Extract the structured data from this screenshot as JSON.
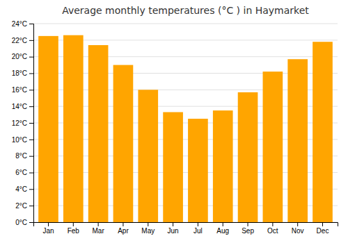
{
  "chart_data": {
    "type": "bar",
    "title": "Average monthly temperatures (°C ) in Haymarket",
    "categories": [
      "Jan",
      "Feb",
      "Mar",
      "Apr",
      "May",
      "Jun",
      "Jul",
      "Aug",
      "Sep",
      "Oct",
      "Nov",
      "Dec"
    ],
    "values": [
      22.5,
      22.6,
      21.4,
      19.0,
      16.0,
      13.3,
      12.5,
      13.5,
      15.7,
      18.2,
      19.7,
      21.8
    ],
    "color": "#FFA500",
    "ylim": [
      0,
      24
    ],
    "yticks": [
      {
        "value": 0,
        "label": "0°C"
      },
      {
        "value": 2,
        "label": "2°C"
      },
      {
        "value": 4,
        "label": "4°C"
      },
      {
        "value": 6,
        "label": "6°C"
      },
      {
        "value": 8,
        "label": "8°C"
      },
      {
        "value": 10,
        "label": "10°C"
      },
      {
        "value": 12,
        "label": "12°C"
      },
      {
        "value": 14,
        "label": "14°C"
      },
      {
        "value": 16,
        "label": "16°C"
      },
      {
        "value": 18,
        "label": "18°C"
      },
      {
        "value": 20,
        "label": "20°C"
      },
      {
        "value": 22,
        "label": "22°C"
      },
      {
        "value": 24,
        "label": "24°C"
      }
    ],
    "grid": true
  }
}
